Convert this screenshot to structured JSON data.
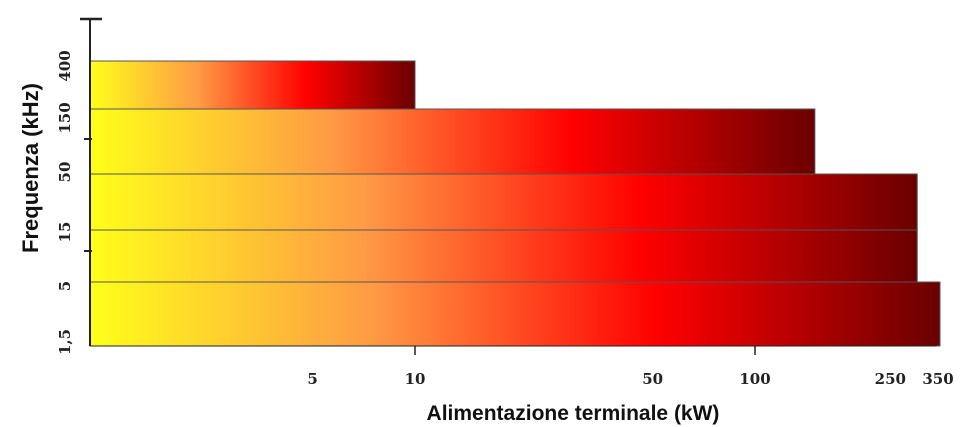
{
  "chart_data": {
    "type": "bar",
    "orientation": "horizontal",
    "title": "",
    "xlabel": "Alimentazione terminale (kW)",
    "ylabel": "Frequenza (kHz)",
    "x_scale": "log",
    "xlim": [
      0.6,
      350
    ],
    "x_ticks": [
      "5",
      "10",
      "50",
      "100",
      "250",
      "350"
    ],
    "y_ticks": [
      "1,5",
      "5",
      "15",
      "50",
      "150",
      "400"
    ],
    "bars": [
      {
        "freq_range": [
          "150",
          "400"
        ],
        "max_power_kw": 10
      },
      {
        "freq_range": [
          "50",
          "150"
        ],
        "max_power_kw": 150
      },
      {
        "freq_range": [
          "15",
          "50"
        ],
        "max_power_kw": 300
      },
      {
        "freq_range": [
          "5",
          "15"
        ],
        "max_power_kw": 300
      },
      {
        "freq_range": [
          "1,5",
          "5"
        ],
        "max_power_kw": 350
      }
    ],
    "gradient": [
      "#ffff1a",
      "#ff9a45",
      "#ff0000",
      "#6a0000"
    ],
    "grid": false,
    "legend": "none"
  }
}
